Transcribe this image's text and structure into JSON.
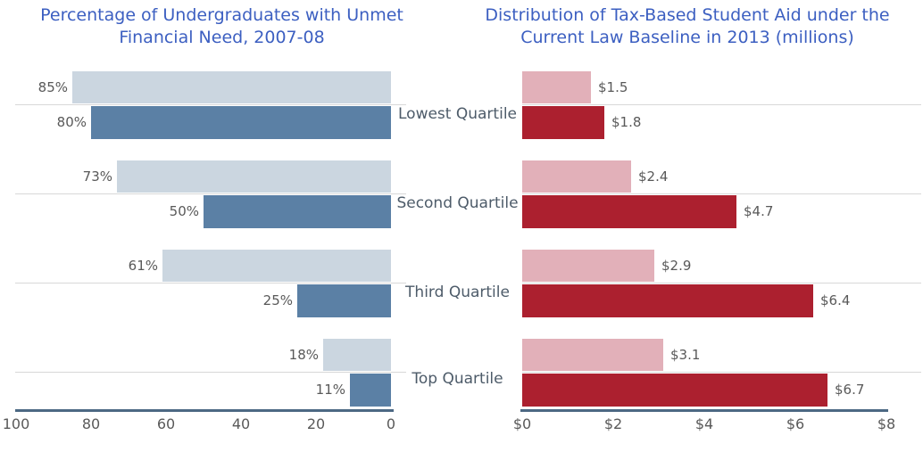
{
  "colors": {
    "title_text": "#3C5FC1",
    "axis_line": "#4C6883",
    "grid_line": "#D8D8D8",
    "tick_label": "#595959",
    "category_label": "#4D5B69",
    "left_light_bar": "#CBD6E0",
    "left_dark_bar": "#5B80A5",
    "right_light_bar": "#E2B0B9",
    "right_dark_bar": "#AC202F"
  },
  "chart_data": [
    {
      "type": "bar",
      "orientation": "horizontal",
      "title": "Percentage of Undergraduates with Unmet Financial Need, 2007-08",
      "title_lines": [
        "Percentage of Undergraduates with Unmet",
        "Financial Need, 2007-08"
      ],
      "categories": [
        "Lowest Quartile",
        "Second Quartile",
        "Third Quartile",
        "Top Quartile"
      ],
      "series": [
        {
          "name": "light-blue-series",
          "color": "#CBD6E0",
          "values": [
            85,
            73,
            61,
            18
          ],
          "data_labels": [
            "85%",
            "73%",
            "61%",
            "18%"
          ]
        },
        {
          "name": "dark-blue-series",
          "color": "#5B80A5",
          "values": [
            80,
            50,
            25,
            11
          ],
          "data_labels": [
            "80%",
            "50%",
            "25%",
            "11%"
          ]
        }
      ],
      "xlabel": "",
      "ylabel": "",
      "xlim": [
        100,
        0
      ],
      "axis_reversed": true,
      "x_ticks": [
        "100",
        "80",
        "60",
        "40",
        "20",
        "0"
      ],
      "x_tick_values": [
        100,
        80,
        60,
        40,
        20,
        0
      ],
      "grid": "category-separator-lines",
      "legend": "none",
      "value_format": "percent"
    },
    {
      "type": "bar",
      "orientation": "horizontal",
      "title": "Distribution of Tax-Based Student Aid under the Current Law Baseline in 2013 (millions)",
      "title_lines": [
        "Distribution of Tax-Based Student Aid under the",
        "Current Law Baseline in 2013 (millions)"
      ],
      "categories": [
        "Lowest Quartile",
        "Second Quartile",
        "Third Quartile",
        "Top Quartile"
      ],
      "series": [
        {
          "name": "pink-series",
          "color": "#E2B0B9",
          "values": [
            1.5,
            2.4,
            2.9,
            3.1
          ],
          "data_labels": [
            "$1.5",
            "$2.4",
            "$2.9",
            "$3.1"
          ]
        },
        {
          "name": "dark-red-series",
          "color": "#AC202F",
          "values": [
            1.8,
            4.7,
            6.4,
            6.7
          ],
          "data_labels": [
            "$1.8",
            "$4.7",
            "$6.4",
            "$6.7"
          ]
        }
      ],
      "xlabel": "",
      "ylabel": "",
      "xlim": [
        0,
        8
      ],
      "axis_reversed": false,
      "x_ticks": [
        "$0",
        "$2",
        "$4",
        "$6",
        "$8"
      ],
      "x_tick_values": [
        0,
        2,
        4,
        6,
        8
      ],
      "grid": "category-separator-lines",
      "legend": "none",
      "value_format": "dollars-millions"
    }
  ]
}
